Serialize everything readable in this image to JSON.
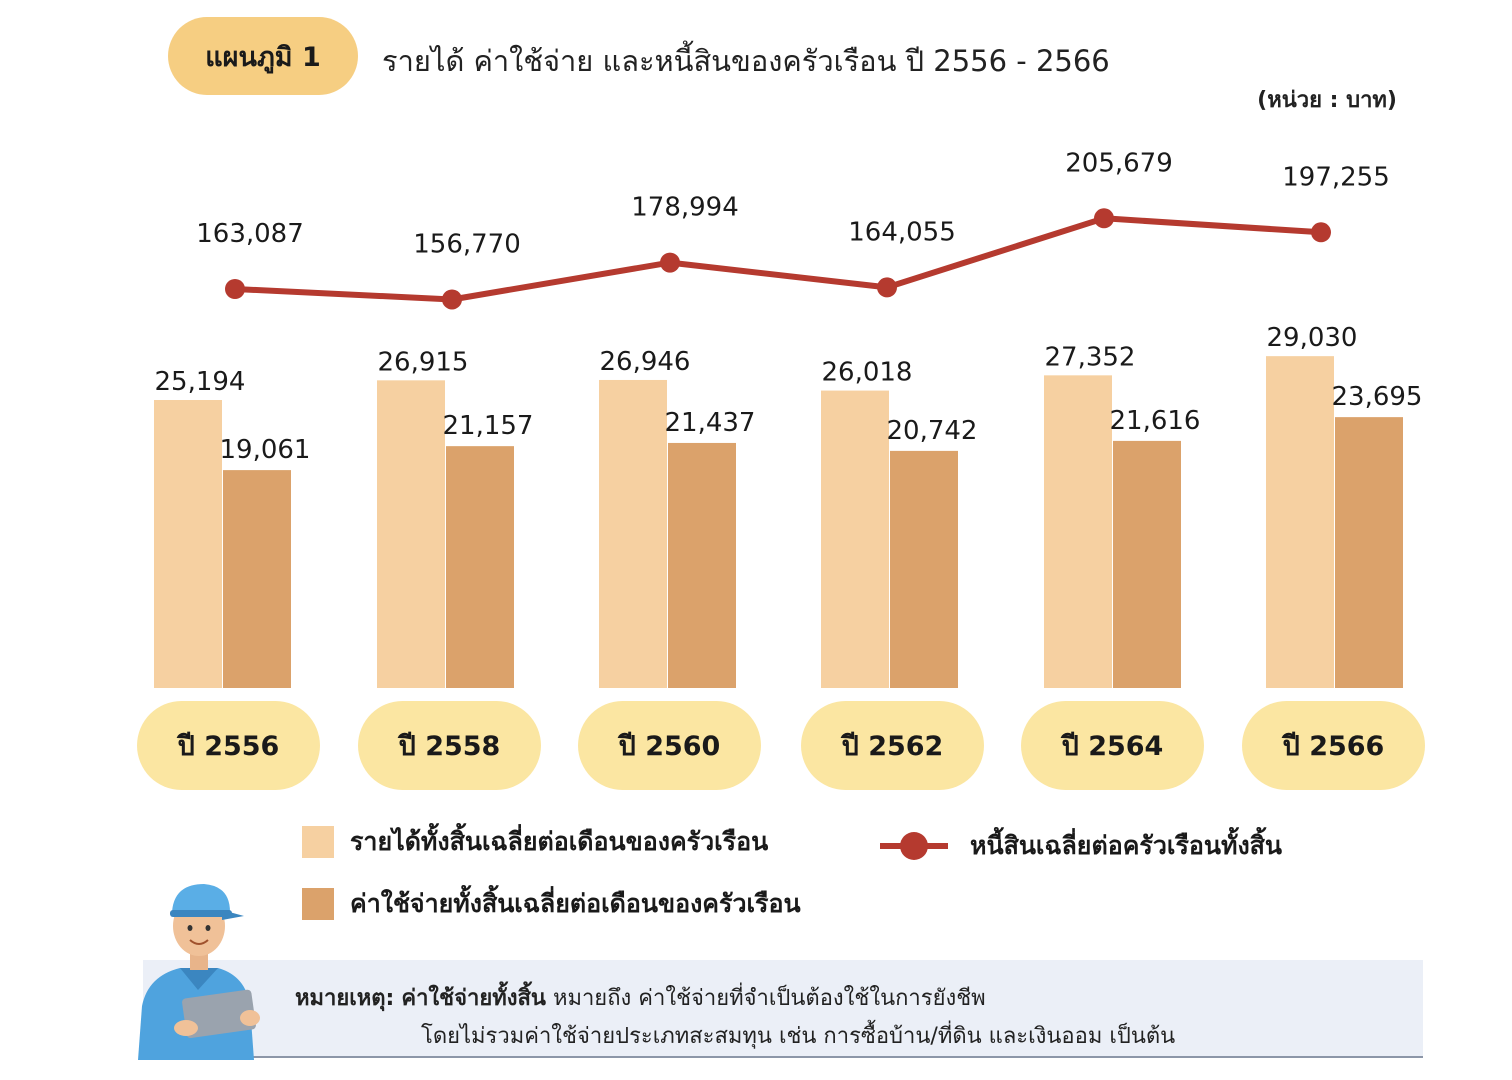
{
  "header": {
    "figure_label": "แผนภูมิ 1",
    "title": "รายได้ ค่าใช้จ่าย และหนี้สินของครัวเรือน ปี 2556 - 2566",
    "unit": "(หน่วย : บาท)"
  },
  "chart_data": {
    "type": "bar",
    "categories": [
      "ปี 2556",
      "ปี 2558",
      "ปี 2560",
      "ปี 2562",
      "ปี 2564",
      "ปี 2566"
    ],
    "series": [
      {
        "name": "รายได้ทั้งสิ้นเฉลี่ยต่อเดือนของครัวเรือน",
        "type": "bar",
        "color": "#F6D0A1",
        "values": [
          25194,
          26915,
          26946,
          26018,
          27352,
          29030
        ],
        "labels": [
          "25,194",
          "26,915",
          "26,946",
          "26,018",
          "27,352",
          "29,030"
        ]
      },
      {
        "name": "ค่าใช้จ่ายทั้งสิ้นเฉลี่ยต่อเดือนของครัวเรือน",
        "type": "bar",
        "color": "#DBA26B",
        "values": [
          19061,
          21157,
          21437,
          20742,
          21616,
          23695
        ],
        "labels": [
          "19,061",
          "21,157",
          "21,437",
          "20,742",
          "21,616",
          "23,695"
        ]
      },
      {
        "name": "หนี้สินเฉลี่ยต่อครัวเรือนทั้งสิ้น",
        "type": "line",
        "color": "#B53A2F",
        "values": [
          163087,
          156770,
          178994,
          164055,
          205679,
          197255
        ],
        "labels": [
          "163,087",
          "156,770",
          "178,994",
          "164,055",
          "205,679",
          "197,255"
        ]
      }
    ],
    "legend_placement": "bottom",
    "grid": false
  },
  "legend": {
    "income": "รายได้ทั้งสิ้นเฉลี่ยต่อเดือนของครัวเรือน",
    "expense": "ค่าใช้จ่ายทั้งสิ้นเฉลี่ยต่อเดือนของครัวเรือน",
    "debt": "หนี้สินเฉลี่ยต่อครัวเรือนทั้งสิ้น"
  },
  "note": {
    "label": "หมายเหตุ:",
    "term": "ค่าใช้จ่ายทั้งสิ้น",
    "line1": "หมายถึง ค่าใช้จ่ายที่จำเป็นต้องใช้ในการยังชีพ",
    "line2": "โดยไม่รวมค่าใช้จ่ายประเภทสะสมทุน เช่น การซื้อบ้าน/ที่ดิน และเงินออม เป็นต้น"
  },
  "colors": {
    "title_pill": "#F6CE82",
    "year_pill": "#FBE6A2",
    "note_bg": "#EBEFF7"
  }
}
